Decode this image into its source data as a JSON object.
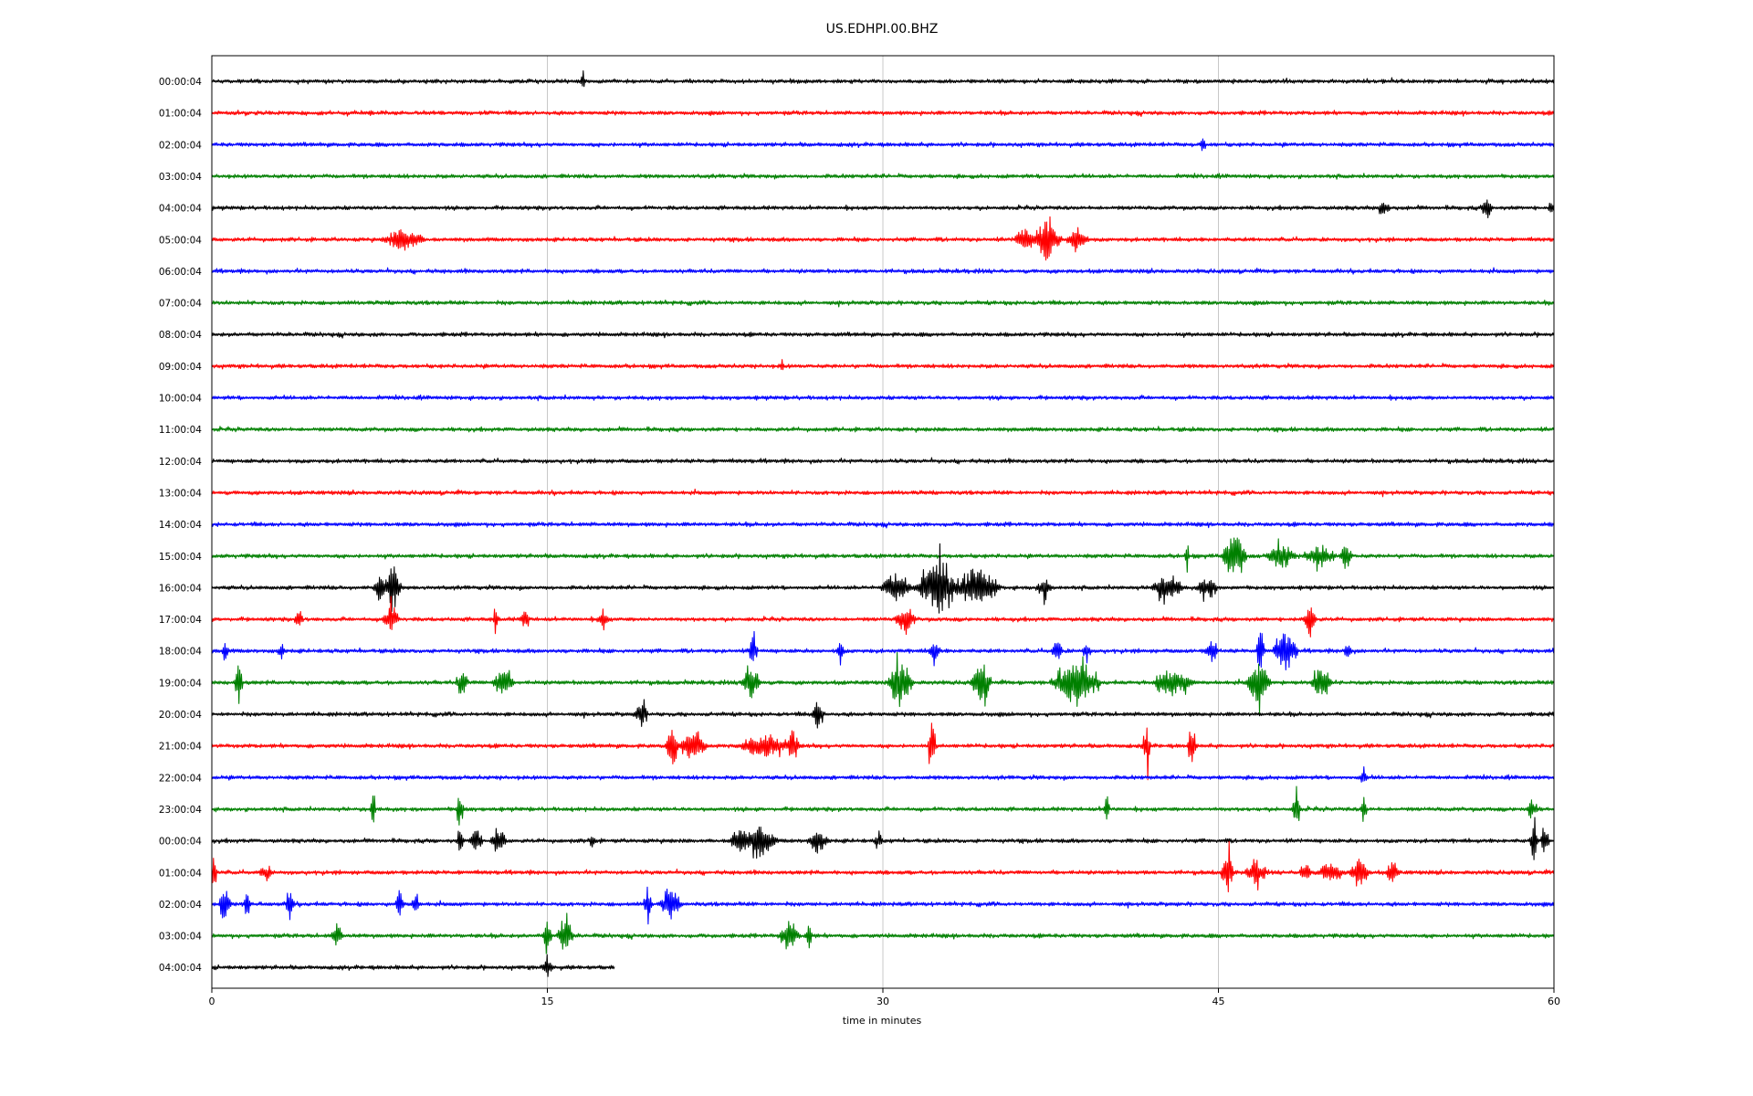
{
  "chart_data": {
    "type": "line",
    "title": "US.EDHPI.00.BHZ",
    "xlabel": "time in minutes",
    "ylabel": "",
    "xlim": [
      0,
      60
    ],
    "x_ticks": [
      0,
      15,
      30,
      45,
      60
    ],
    "x_tick_labels": [
      "0",
      "15",
      "30",
      "45",
      "60"
    ],
    "vertical_grid": true,
    "color_cycle": [
      "#000000",
      "#ff0000",
      "#0000ff",
      "#008000"
    ],
    "rows": [
      {
        "label": "00:00:04",
        "color": "#000000",
        "end_min": 60,
        "events": [
          [
            16.6,
            1.3,
            0.12
          ]
        ]
      },
      {
        "label": "01:00:04",
        "color": "#ff0000",
        "end_min": 60,
        "events": []
      },
      {
        "label": "02:00:04",
        "color": "#0000ff",
        "end_min": 60,
        "events": [
          [
            44.3,
            1.0,
            0.15
          ]
        ]
      },
      {
        "label": "03:00:04",
        "color": "#008000",
        "end_min": 60,
        "events": []
      },
      {
        "label": "04:00:04",
        "color": "#000000",
        "end_min": 60,
        "events": [
          [
            52.4,
            1.2,
            0.3
          ],
          [
            57.0,
            1.3,
            0.3
          ],
          [
            59.9,
            1.2,
            0.15
          ]
        ]
      },
      {
        "label": "05:00:04",
        "color": "#ff0000",
        "end_min": 60,
        "events": [
          [
            8.6,
            1.6,
            1.0
          ],
          [
            36.3,
            1.8,
            0.5
          ],
          [
            37.3,
            3.5,
            0.7
          ],
          [
            38.7,
            2.2,
            0.5
          ]
        ]
      },
      {
        "label": "06:00:04",
        "color": "#0000ff",
        "end_min": 60,
        "events": []
      },
      {
        "label": "07:00:04",
        "color": "#008000",
        "end_min": 60,
        "events": []
      },
      {
        "label": "08:00:04",
        "color": "#000000",
        "end_min": 60,
        "events": []
      },
      {
        "label": "09:00:04",
        "color": "#ff0000",
        "end_min": 60,
        "events": [
          [
            25.5,
            0.9,
            0.12
          ]
        ]
      },
      {
        "label": "10:00:04",
        "color": "#0000ff",
        "end_min": 60,
        "events": []
      },
      {
        "label": "11:00:04",
        "color": "#008000",
        "end_min": 60,
        "events": []
      },
      {
        "label": "12:00:04",
        "color": "#000000",
        "end_min": 60,
        "events": []
      },
      {
        "label": "13:00:04",
        "color": "#ff0000",
        "end_min": 60,
        "events": []
      },
      {
        "label": "14:00:04",
        "color": "#0000ff",
        "end_min": 60,
        "events": []
      },
      {
        "label": "15:00:04",
        "color": "#008000",
        "end_min": 60,
        "events": [
          [
            43.6,
            2.2,
            0.12
          ],
          [
            45.7,
            4.0,
            0.6
          ],
          [
            47.8,
            2.0,
            0.7
          ],
          [
            49.5,
            1.6,
            0.8
          ],
          [
            50.7,
            2.4,
            0.3
          ]
        ]
      },
      {
        "label": "16:00:04",
        "color": "#000000",
        "end_min": 60,
        "events": [
          [
            7.5,
            2.5,
            0.3
          ],
          [
            8.1,
            3.5,
            0.4
          ],
          [
            30.6,
            2.2,
            0.8
          ],
          [
            32.5,
            3.8,
            1.2
          ],
          [
            34.3,
            3.0,
            1.0
          ],
          [
            37.2,
            1.5,
            0.4
          ],
          [
            42.7,
            2.2,
            0.8
          ],
          [
            44.5,
            1.8,
            0.5
          ]
        ]
      },
      {
        "label": "17:00:04",
        "color": "#ff0000",
        "end_min": 60,
        "events": [
          [
            3.9,
            1.6,
            0.2
          ],
          [
            8.0,
            2.3,
            0.4
          ],
          [
            12.7,
            2.8,
            0.12
          ],
          [
            14.0,
            2.0,
            0.2
          ],
          [
            17.5,
            1.6,
            0.25
          ],
          [
            31.0,
            2.0,
            0.5
          ],
          [
            49.1,
            2.8,
            0.3
          ]
        ]
      },
      {
        "label": "18:00:04",
        "color": "#0000ff",
        "end_min": 60,
        "events": [
          [
            0.6,
            1.8,
            0.15
          ],
          [
            3.1,
            1.5,
            0.15
          ],
          [
            24.2,
            3.5,
            0.2
          ],
          [
            28.1,
            1.6,
            0.2
          ],
          [
            32.3,
            1.6,
            0.3
          ],
          [
            37.8,
            1.6,
            0.3
          ],
          [
            39.1,
            1.4,
            0.2
          ],
          [
            44.7,
            1.8,
            0.3
          ],
          [
            46.9,
            4.0,
            0.2
          ],
          [
            48.0,
            3.0,
            0.6
          ],
          [
            50.8,
            1.5,
            0.2
          ]
        ]
      },
      {
        "label": "19:00:04",
        "color": "#008000",
        "end_min": 60,
        "events": [
          [
            1.2,
            3.8,
            0.2
          ],
          [
            11.2,
            2.2,
            0.3
          ],
          [
            13.0,
            2.5,
            0.5
          ],
          [
            24.1,
            2.8,
            0.5
          ],
          [
            30.8,
            3.5,
            0.6
          ],
          [
            34.4,
            3.0,
            0.5
          ],
          [
            38.6,
            3.5,
            1.2
          ],
          [
            43.0,
            2.2,
            1.0
          ],
          [
            46.8,
            3.5,
            0.6
          ],
          [
            49.6,
            3.0,
            0.5
          ]
        ]
      },
      {
        "label": "20:00:04",
        "color": "#000000",
        "end_min": 60,
        "events": [
          [
            19.2,
            2.3,
            0.3
          ],
          [
            27.1,
            2.3,
            0.3
          ]
        ]
      },
      {
        "label": "21:00:04",
        "color": "#ff0000",
        "end_min": 60,
        "events": [
          [
            20.6,
            2.8,
            0.3
          ],
          [
            21.5,
            2.6,
            0.7
          ],
          [
            24.8,
            1.6,
            1.4
          ],
          [
            26.0,
            2.2,
            0.3
          ],
          [
            32.2,
            3.8,
            0.2
          ],
          [
            41.8,
            3.5,
            0.2
          ],
          [
            43.8,
            3.5,
            0.2
          ]
        ]
      },
      {
        "label": "22:00:04",
        "color": "#0000ff",
        "end_min": 60,
        "events": [
          [
            51.5,
            1.1,
            0.2
          ]
        ]
      },
      {
        "label": "23:00:04",
        "color": "#008000",
        "end_min": 60,
        "events": [
          [
            7.2,
            3.2,
            0.15
          ],
          [
            11.1,
            3.0,
            0.2
          ],
          [
            40.0,
            2.2,
            0.15
          ],
          [
            48.5,
            3.2,
            0.2
          ],
          [
            51.5,
            2.3,
            0.15
          ],
          [
            59.0,
            1.5,
            0.3
          ]
        ]
      },
      {
        "label": "00:00:04",
        "color": "#000000",
        "end_min": 60,
        "events": [
          [
            11.1,
            2.3,
            0.15
          ],
          [
            11.8,
            2.6,
            0.3
          ],
          [
            12.8,
            2.0,
            0.4
          ],
          [
            17.0,
            1.6,
            0.15
          ],
          [
            23.6,
            2.2,
            0.5
          ],
          [
            24.5,
            2.5,
            0.8
          ],
          [
            27.1,
            1.6,
            0.5
          ],
          [
            29.8,
            1.2,
            0.2
          ],
          [
            59.1,
            3.3,
            0.2
          ],
          [
            59.6,
            2.6,
            0.2
          ]
        ]
      },
      {
        "label": "01:00:04",
        "color": "#ff0000",
        "end_min": 60,
        "events": [
          [
            0.1,
            3.2,
            0.15
          ],
          [
            2.4,
            1.2,
            0.3
          ],
          [
            45.4,
            3.5,
            0.3
          ],
          [
            46.7,
            1.8,
            0.5
          ],
          [
            48.9,
            1.8,
            0.3
          ],
          [
            50.0,
            1.6,
            0.6
          ],
          [
            51.3,
            2.3,
            0.5
          ],
          [
            52.8,
            1.9,
            0.3
          ]
        ]
      },
      {
        "label": "02:00:04",
        "color": "#0000ff",
        "end_min": 60,
        "events": [
          [
            0.6,
            2.8,
            0.3
          ],
          [
            1.6,
            3.5,
            0.15
          ],
          [
            3.5,
            3.0,
            0.2
          ],
          [
            8.4,
            2.6,
            0.2
          ],
          [
            9.1,
            1.8,
            0.2
          ],
          [
            19.5,
            3.0,
            0.2
          ],
          [
            20.5,
            2.3,
            0.5
          ]
        ]
      },
      {
        "label": "03:00:04",
        "color": "#008000",
        "end_min": 60,
        "events": [
          [
            5.6,
            1.4,
            0.3
          ],
          [
            15.0,
            3.3,
            0.2
          ],
          [
            15.8,
            3.0,
            0.4
          ],
          [
            25.8,
            2.2,
            0.5
          ],
          [
            26.7,
            2.8,
            0.15
          ]
        ]
      },
      {
        "label": "04:00:04",
        "color": "#000000",
        "end_min": 18,
        "events": [
          [
            15.0,
            1.2,
            0.3
          ]
        ]
      }
    ]
  }
}
